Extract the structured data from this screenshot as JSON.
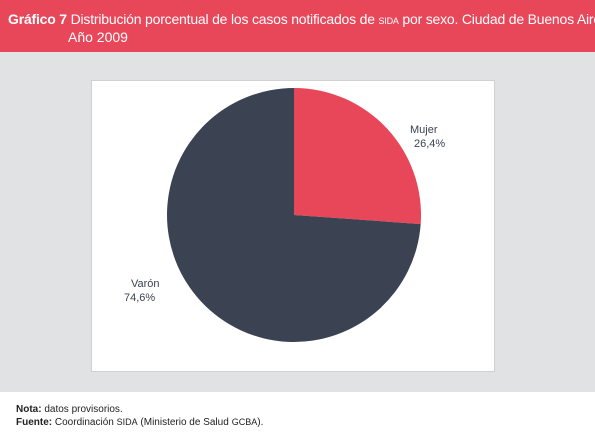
{
  "header": {
    "label": "Gráfico 7",
    "title_part1": "Distribución porcentual de los casos notificados de",
    "title_sc": "SIDA",
    "title_part2": "por sexo. Ciudad de Buenos Aires.",
    "title_line2": "Año 2009",
    "color": "#e84659"
  },
  "chart_data": {
    "type": "pie",
    "categories": [
      "Mujer",
      "Varón"
    ],
    "values": [
      26.4,
      74.6
    ],
    "value_labels": [
      "26,4%",
      "74,6%"
    ],
    "colors": [
      "#e84659",
      "#3b4252"
    ]
  },
  "footer": {
    "note_label": "Nota:",
    "note_text": "datos provisorios.",
    "source_label": "Fuente:",
    "source_part1": "Coordinación",
    "source_sc1": "SIDA",
    "source_part2": "(Ministerio de Salud",
    "source_sc2": "GCBA",
    "source_part3": ")."
  }
}
